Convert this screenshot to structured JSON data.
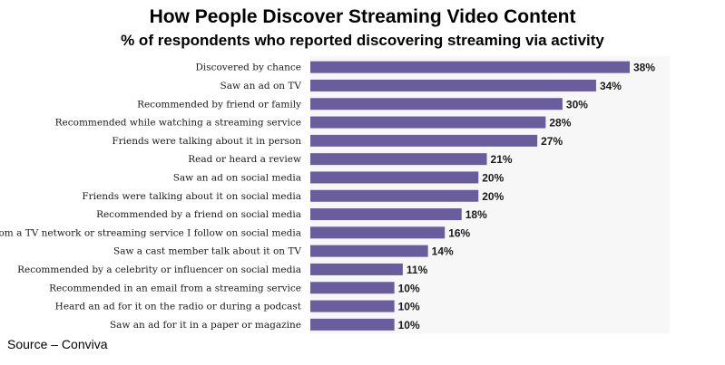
{
  "chart_data": {
    "type": "bar",
    "orientation": "horizontal",
    "title": "How People Discover Streaming Video Content",
    "subtitle": "% of respondents who reported discovering streaming via activity",
    "categories": [
      "Discovered by chance",
      "Saw an ad on TV",
      "Recommended by friend or family",
      "Recommended while watching a streaming service",
      "Friends were talking about it in person",
      "Read or heard a review",
      "Saw an ad on social media",
      "Friends were talking about it on social media",
      "Recommended by a friend on social media",
      "Post from a TV network or streaming service I follow on social media",
      "Saw a cast member talk about it on TV",
      "Recommended by a celebrity or influencer on social media",
      "Recommended in an email from a streaming service",
      "Heard an ad for it on the radio or during a podcast",
      "Saw an ad for it in a paper or magazine"
    ],
    "values": [
      38,
      34,
      30,
      28,
      27,
      21,
      20,
      20,
      18,
      16,
      14,
      11,
      10,
      10,
      10
    ],
    "value_suffix": "%",
    "xlim": [
      0,
      38
    ],
    "grid": false,
    "legend": "none",
    "bar_color": "#6a5d9e",
    "plot_background": "#f7f7f7"
  },
  "source": "Source – Conviva"
}
